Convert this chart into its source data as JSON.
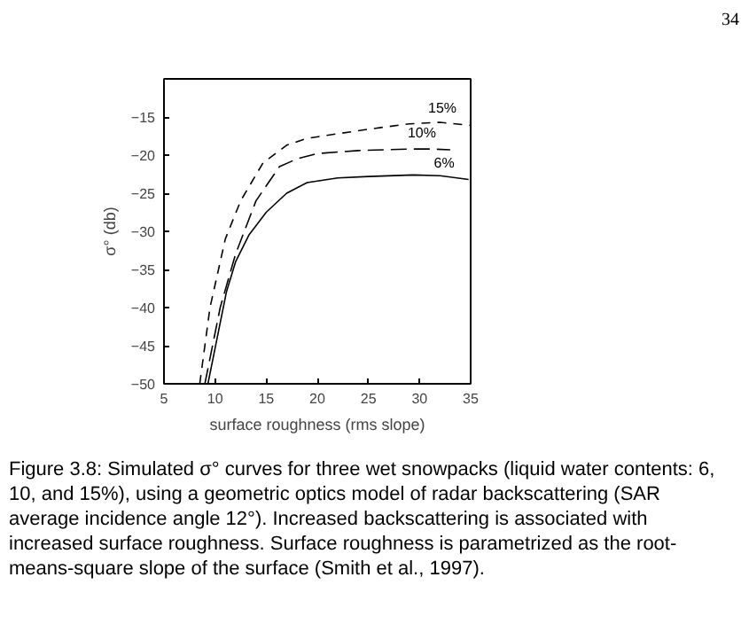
{
  "chart_data": {
    "type": "line",
    "xlabel": "surface roughness (rms slope)",
    "ylabel": "σ° (db)",
    "xlim": [
      5,
      35
    ],
    "ylim": [
      -50,
      -10
    ],
    "xticks": [
      5,
      10,
      15,
      20,
      25,
      30,
      35
    ],
    "yticks": [
      -15,
      -20,
      -25,
      -30,
      -35,
      -40,
      -45,
      -50
    ],
    "grid": false,
    "series": [
      {
        "name": "15%",
        "color": "#000000",
        "line_style": "dashed",
        "x": [
          8.5,
          9.5,
          11,
          12.5,
          14.7,
          17,
          19,
          22,
          25,
          29,
          32,
          35
        ],
        "values": [
          -50,
          -40,
          -31,
          -26,
          -21,
          -18.7,
          -17.8,
          -17.2,
          -16.6,
          -15.9,
          -15.7,
          -16.1
        ]
      },
      {
        "name": "10%",
        "color": "#000000",
        "line_style": "dashed",
        "x": [
          9,
          10.5,
          12,
          14,
          16.3,
          18,
          20,
          24,
          29,
          31,
          33
        ],
        "values": [
          -50,
          -40,
          -33,
          -26,
          -21.5,
          -20.5,
          -19.8,
          -19.4,
          -19.2,
          -19.2,
          -19.3
        ]
      },
      {
        "name": "6%",
        "color": "#000000",
        "line_style": "solid",
        "x": [
          9.3,
          10.2,
          11.1,
          12,
          13.3,
          15,
          17,
          19,
          22,
          25,
          29.4,
          32,
          34.8
        ],
        "values": [
          -50,
          -44,
          -38,
          -34,
          -30.5,
          -27.5,
          -25,
          -23.6,
          -23,
          -22.8,
          -22.6,
          -22.7,
          -23.2
        ]
      }
    ],
    "annotations": [
      "34",
      "Figure 3.8: Simulated σ° curves for three wet snowpacks (liquid water contents: 6, 10, and 15%), using a geometric optics model of radar backscattering (SAR average incidence angle 12°). Increased backscattering is associated with increased surface roughness. Surface roughness is parametrized as the root-means-square slope of the surface (Smith et al., 1997)."
    ]
  }
}
